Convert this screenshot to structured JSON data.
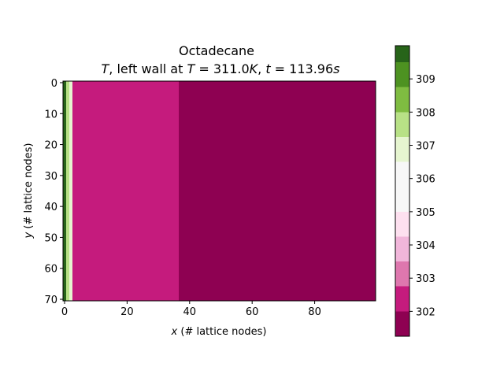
{
  "chart_data": {
    "type": "heatmap",
    "title": {
      "line1": "Octadecane",
      "line2_parts": [
        {
          "text": "T",
          "italic": true
        },
        {
          "text": ", left wall at ",
          "italic": false
        },
        {
          "text": "T",
          "italic": true
        },
        {
          "text": " = 311.0",
          "italic": false
        },
        {
          "text": "K",
          "italic": true
        },
        {
          "text": ", ",
          "italic": false
        },
        {
          "text": "t",
          "italic": true
        },
        {
          "text": " = 113.96",
          "italic": false
        },
        {
          "text": "s",
          "italic": true
        }
      ]
    },
    "xlabel_parts": [
      {
        "text": "x",
        "italic": true
      },
      {
        "text": " (# lattice nodes)",
        "italic": false
      }
    ],
    "ylabel_parts": [
      {
        "text": "y",
        "italic": true
      },
      {
        "text": " (# lattice nodes)",
        "italic": false
      }
    ],
    "xlim": [
      -0.5,
      99.5
    ],
    "ylim": [
      70.5,
      -0.5
    ],
    "y_inverted": true,
    "xticks": [
      0,
      20,
      40,
      60,
      80
    ],
    "yticks": [
      0,
      10,
      20,
      30,
      40,
      50,
      60,
      70
    ],
    "colormap": "PiYG",
    "colorbar": {
      "range": [
        301.25,
        310.0
      ],
      "levels": [
        {
          "from": 301.25,
          "to": 302.0,
          "color": "#8e0152"
        },
        {
          "from": 302.0,
          "to": 302.75,
          "color": "#c51b7d"
        },
        {
          "from": 302.75,
          "to": 303.5,
          "color": "#de77ae"
        },
        {
          "from": 303.5,
          "to": 304.25,
          "color": "#f1b6da"
        },
        {
          "from": 304.25,
          "to": 305.0,
          "color": "#fde0ef"
        },
        {
          "from": 305.0,
          "to": 305.75,
          "color": "#f7f7f7"
        },
        {
          "from": 305.75,
          "to": 306.5,
          "color": "#f7f7f7"
        },
        {
          "from": 306.5,
          "to": 307.25,
          "color": "#e6f5d0"
        },
        {
          "from": 307.25,
          "to": 308.0,
          "color": "#b8e186"
        },
        {
          "from": 308.0,
          "to": 308.75,
          "color": "#7fbc41"
        },
        {
          "from": 308.75,
          "to": 309.5,
          "color": "#4d9221"
        },
        {
          "from": 309.5,
          "to": 310.0,
          "color": "#276419"
        }
      ],
      "ticks": [
        302,
        303,
        304,
        305,
        306,
        307,
        308,
        309
      ]
    },
    "regions": [
      {
        "x_from": -0.5,
        "x_to": 0.5,
        "y_from": -0.5,
        "y_to": 70.5,
        "color": "#276419"
      },
      {
        "x_from": 0.5,
        "x_to": 1.5,
        "y_from": -0.5,
        "y_to": 70.5,
        "color": "#b8e186"
      },
      {
        "x_from": 1.5,
        "x_to": 2.5,
        "y_from": -0.5,
        "y_to": 70.5,
        "color": "#e6f5d0"
      },
      {
        "x_from": 2.5,
        "x_to": 36.5,
        "y_from": -0.5,
        "y_to": 70.5,
        "color": "#c51b7d"
      },
      {
        "x_from": 36.5,
        "x_to": 99.5,
        "y_from": -0.5,
        "y_to": 70.5,
        "color": "#8e0152"
      }
    ]
  }
}
